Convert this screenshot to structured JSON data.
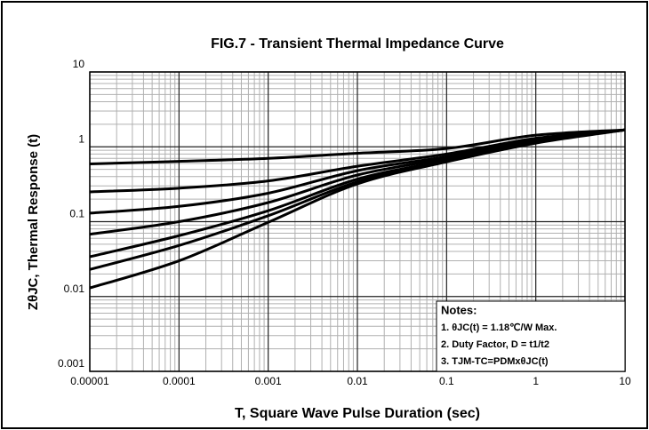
{
  "chart_data": {
    "type": "line",
    "title": "FIG.7 - Transient Thermal Impedance Curve",
    "x_label": "T, Square Wave Pulse Duration (sec)",
    "y_label": "ZθJC, Thermal Response (t)",
    "x": [
      1e-05,
      0.0001,
      0.001,
      0.01,
      0.1,
      1,
      10
    ],
    "series": [
      {
        "color": "#000000",
        "values": [
          0.59,
          0.64,
          0.7,
          0.82,
          0.95,
          1.43,
          1.68
        ]
      },
      {
        "color": "#000000",
        "values": [
          0.25,
          0.28,
          0.35,
          0.55,
          0.8,
          1.3,
          1.68
        ]
      },
      {
        "color": "#000000",
        "values": [
          0.13,
          0.16,
          0.24,
          0.48,
          0.74,
          1.25,
          1.68
        ]
      },
      {
        "color": "#000000",
        "values": [
          0.068,
          0.1,
          0.18,
          0.42,
          0.7,
          1.2,
          1.68
        ]
      },
      {
        "color": "#000000",
        "values": [
          0.034,
          0.065,
          0.14,
          0.37,
          0.66,
          1.18,
          1.68
        ]
      },
      {
        "color": "#000000",
        "values": [
          0.023,
          0.048,
          0.12,
          0.34,
          0.64,
          1.15,
          1.68
        ]
      },
      {
        "color": "#000000",
        "values": [
          0.013,
          0.03,
          0.098,
          0.32,
          0.63,
          1.12,
          1.68
        ]
      }
    ],
    "xlim": [
      1e-05,
      10
    ],
    "ylim": [
      0.001,
      10
    ],
    "xticks": [
      1e-05,
      0.0001,
      0.001,
      0.01,
      0.1,
      1,
      10
    ],
    "yticks": [
      0.001,
      0.01,
      0.1,
      1,
      10
    ],
    "log_x": true,
    "log_y": true,
    "grid": true,
    "notes": [
      "Notes:",
      "1. θJC(t) = 1.18℃/W Max.",
      "2. Duty Factor, D = t1/t2",
      "3. TJM-TC=PDMxθJC(t)"
    ]
  }
}
